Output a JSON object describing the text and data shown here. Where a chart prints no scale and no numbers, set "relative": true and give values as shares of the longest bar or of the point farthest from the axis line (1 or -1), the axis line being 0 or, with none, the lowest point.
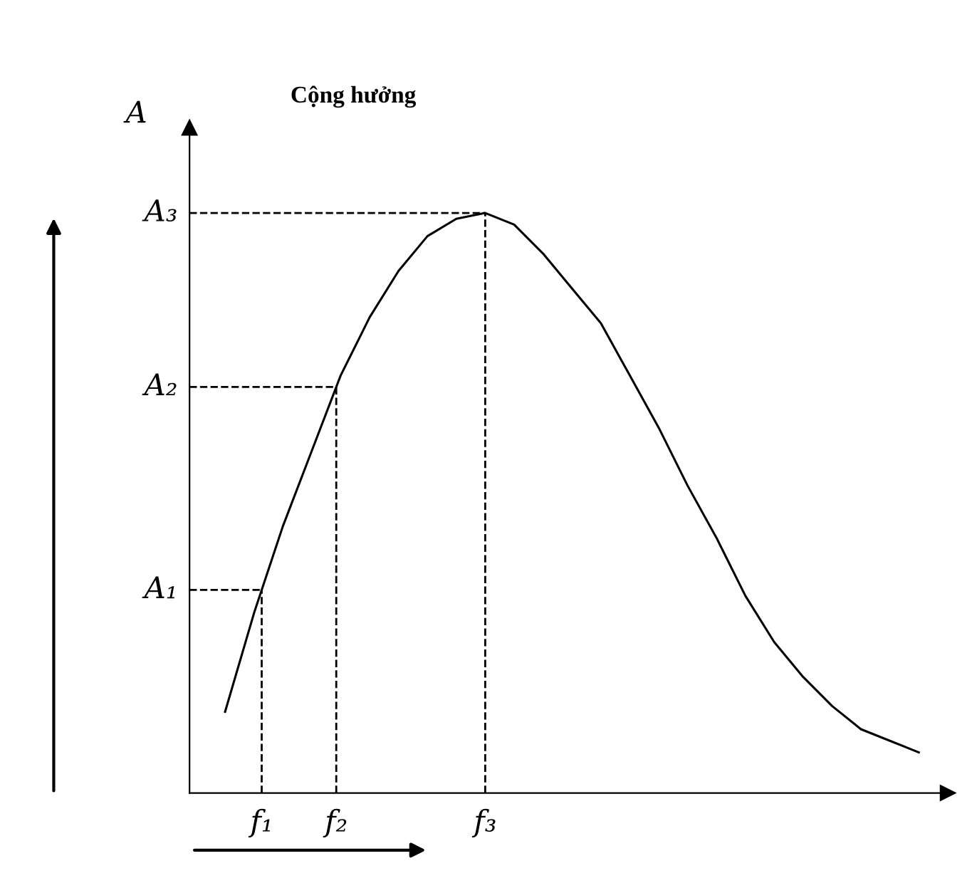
{
  "chart_data": {
    "type": "line",
    "relative": true,
    "title": "Cộng hưởng",
    "ylabel": "A",
    "categories": [
      null,
      null,
      null,
      null,
      null,
      null,
      null,
      null,
      null,
      null,
      null,
      null,
      null,
      null,
      null,
      null,
      null,
      null,
      null,
      null,
      null,
      null,
      null,
      null,
      null
    ],
    "series": [
      {
        "color": "#000000",
        "values": [
          0.14,
          0.31,
          0.46,
          0.59,
          0.72,
          0.82,
          0.9,
          0.96,
          0.99,
          1.0,
          0.98,
          0.93,
          0.87,
          0.81,
          0.72,
          0.63,
          0.53,
          0.44,
          0.34,
          0.26,
          0.2,
          0.15,
          0.11,
          0.09,
          0.07
        ]
      }
    ],
    "ref_lines": [
      {
        "axis": "y",
        "value": 0.35,
        "label": "A₁",
        "color": "#000000",
        "line_style": "dashed"
      },
      {
        "axis": "y",
        "value": 0.7,
        "label": "A₂",
        "color": "#000000",
        "line_style": "dashed"
      },
      {
        "axis": "y",
        "value": 1.0,
        "label": "A₃",
        "color": "#000000",
        "line_style": "dashed"
      }
    ],
    "annotations": [
      "f₁",
      "f₂",
      "f₃"
    ],
    "legend": false,
    "marker": "none",
    "line_style": "solid"
  }
}
